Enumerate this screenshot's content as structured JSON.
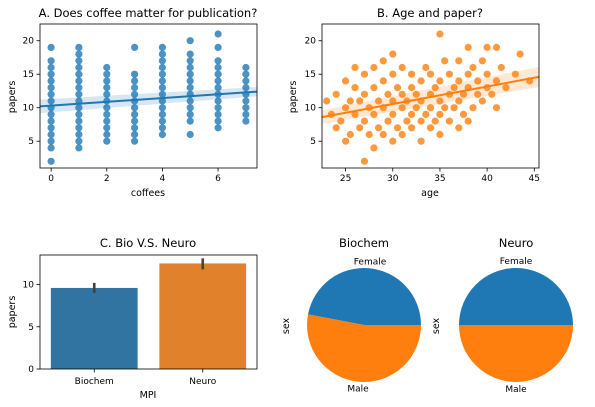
{
  "chart_data": [
    {
      "type": "scatter",
      "title": "A. Does coffee matter for publication?",
      "xlabel": "coffees",
      "ylabel": "papers",
      "xlim": [
        -0.4,
        7.4
      ],
      "ylim": [
        1,
        22.5
      ],
      "xticks": [
        0,
        2,
        4,
        6
      ],
      "yticks": [
        5,
        10,
        15,
        20
      ],
      "color": "#1f77b4",
      "regression": {
        "x": [
          -0.4,
          7.4
        ],
        "y": [
          10.2,
          12.4
        ],
        "ci": [
          1.0,
          0.7
        ]
      },
      "points": [
        [
          0,
          2
        ],
        [
          0,
          4
        ],
        [
          0,
          5
        ],
        [
          0,
          6
        ],
        [
          0,
          7
        ],
        [
          0,
          8
        ],
        [
          0,
          9
        ],
        [
          0,
          10
        ],
        [
          0,
          11
        ],
        [
          0,
          12
        ],
        [
          0,
          13
        ],
        [
          0,
          14
        ],
        [
          0,
          15
        ],
        [
          0,
          16
        ],
        [
          0,
          17
        ],
        [
          0,
          19
        ],
        [
          1,
          4
        ],
        [
          1,
          5
        ],
        [
          1,
          6
        ],
        [
          1,
          7
        ],
        [
          1,
          8
        ],
        [
          1,
          9
        ],
        [
          1,
          10
        ],
        [
          1,
          11
        ],
        [
          1,
          12
        ],
        [
          1,
          13
        ],
        [
          1,
          14
        ],
        [
          1,
          15
        ],
        [
          1,
          16
        ],
        [
          1,
          17
        ],
        [
          1,
          18
        ],
        [
          1,
          19
        ],
        [
          2,
          5
        ],
        [
          2,
          6
        ],
        [
          2,
          7
        ],
        [
          2,
          8
        ],
        [
          2,
          9
        ],
        [
          2,
          10
        ],
        [
          2,
          11
        ],
        [
          2,
          12
        ],
        [
          2,
          13
        ],
        [
          2,
          14
        ],
        [
          2,
          15
        ],
        [
          2,
          16
        ],
        [
          3,
          5
        ],
        [
          3,
          6
        ],
        [
          3,
          7
        ],
        [
          3,
          8
        ],
        [
          3,
          9
        ],
        [
          3,
          10
        ],
        [
          3,
          11
        ],
        [
          3,
          12
        ],
        [
          3,
          13
        ],
        [
          3,
          14
        ],
        [
          3,
          15
        ],
        [
          3,
          19
        ],
        [
          4,
          6
        ],
        [
          4,
          7
        ],
        [
          4,
          8
        ],
        [
          4,
          9
        ],
        [
          4,
          10
        ],
        [
          4,
          11
        ],
        [
          4,
          12
        ],
        [
          4,
          13
        ],
        [
          4,
          14
        ],
        [
          4,
          15
        ],
        [
          4,
          16
        ],
        [
          4,
          17
        ],
        [
          4,
          18
        ],
        [
          4,
          19
        ],
        [
          5,
          6
        ],
        [
          5,
          8
        ],
        [
          5,
          9
        ],
        [
          5,
          10
        ],
        [
          5,
          11
        ],
        [
          5,
          12
        ],
        [
          5,
          13
        ],
        [
          5,
          14
        ],
        [
          5,
          15
        ],
        [
          5,
          16
        ],
        [
          5,
          17
        ],
        [
          5,
          18
        ],
        [
          5,
          20
        ],
        [
          6,
          7
        ],
        [
          6,
          8
        ],
        [
          6,
          9
        ],
        [
          6,
          10
        ],
        [
          6,
          11
        ],
        [
          6,
          12
        ],
        [
          6,
          13
        ],
        [
          6,
          14
        ],
        [
          6,
          15
        ],
        [
          6,
          16
        ],
        [
          6,
          17
        ],
        [
          6,
          19
        ],
        [
          6,
          21
        ],
        [
          7,
          8
        ],
        [
          7,
          9
        ],
        [
          7,
          10
        ],
        [
          7,
          11
        ],
        [
          7,
          12
        ],
        [
          7,
          13
        ],
        [
          7,
          14
        ],
        [
          7,
          15
        ],
        [
          7,
          16
        ]
      ]
    },
    {
      "type": "scatter",
      "title": "B. Age and paper?",
      "xlabel": "age",
      "ylabel": "papers",
      "xlim": [
        22.5,
        45.5
      ],
      "ylim": [
        1,
        22.5
      ],
      "xticks": [
        25,
        30,
        35,
        40,
        45
      ],
      "yticks": [
        5,
        10,
        15,
        20
      ],
      "color": "#ff7f0e",
      "regression": {
        "x": [
          22.5,
          45.5
        ],
        "y": [
          8.6,
          14.6
        ],
        "ci": [
          1.0,
          1.5
        ]
      },
      "points": [
        [
          23,
          11
        ],
        [
          23.5,
          9
        ],
        [
          24,
          7
        ],
        [
          24,
          12
        ],
        [
          24.5,
          8
        ],
        [
          25,
          5
        ],
        [
          25,
          10
        ],
        [
          25,
          14
        ],
        [
          25.5,
          11
        ],
        [
          25.5,
          6
        ],
        [
          26,
          9
        ],
        [
          26,
          13
        ],
        [
          26,
          16
        ],
        [
          26.5,
          7
        ],
        [
          26.5,
          11
        ],
        [
          27,
          2
        ],
        [
          27,
          8
        ],
        [
          27,
          12
        ],
        [
          27,
          15
        ],
        [
          27.5,
          6
        ],
        [
          27.5,
          10
        ],
        [
          28,
          4
        ],
        [
          28,
          9
        ],
        [
          28,
          13
        ],
        [
          28,
          16
        ],
        [
          28.5,
          7
        ],
        [
          28.5,
          11
        ],
        [
          29,
          6
        ],
        [
          29,
          10
        ],
        [
          29,
          14
        ],
        [
          29,
          17
        ],
        [
          29.5,
          8
        ],
        [
          29.5,
          12
        ],
        [
          30,
          5
        ],
        [
          30,
          9
        ],
        [
          30,
          11
        ],
        [
          30,
          15
        ],
        [
          30,
          18
        ],
        [
          30.5,
          7
        ],
        [
          30.5,
          13
        ],
        [
          31,
          6
        ],
        [
          31,
          10
        ],
        [
          31,
          12
        ],
        [
          31,
          16
        ],
        [
          31.5,
          8
        ],
        [
          31.5,
          11
        ],
        [
          32,
          7
        ],
        [
          32,
          9
        ],
        [
          32,
          13
        ],
        [
          32,
          15
        ],
        [
          32.5,
          10
        ],
        [
          32.5,
          12
        ],
        [
          33,
          5
        ],
        [
          33,
          8
        ],
        [
          33,
          11
        ],
        [
          33,
          14
        ],
        [
          33.5,
          9
        ],
        [
          33.5,
          16
        ],
        [
          34,
          7
        ],
        [
          34,
          10
        ],
        [
          34,
          12
        ],
        [
          34,
          15
        ],
        [
          34.5,
          8
        ],
        [
          34.5,
          13
        ],
        [
          35,
          6
        ],
        [
          35,
          9
        ],
        [
          35,
          11
        ],
        [
          35,
          14
        ],
        [
          35,
          21
        ],
        [
          35.5,
          10
        ],
        [
          35.5,
          17
        ],
        [
          36,
          8
        ],
        [
          36,
          12
        ],
        [
          36,
          15
        ],
        [
          36.5,
          10
        ],
        [
          36.5,
          13
        ],
        [
          37,
          7
        ],
        [
          37,
          11
        ],
        [
          37,
          14
        ],
        [
          37,
          17
        ],
        [
          37.5,
          9
        ],
        [
          37.5,
          12
        ],
        [
          38,
          8
        ],
        [
          38,
          13
        ],
        [
          38,
          15
        ],
        [
          38,
          19
        ],
        [
          38.5,
          10
        ],
        [
          38.5,
          16
        ],
        [
          39,
          12
        ],
        [
          39,
          14
        ],
        [
          39.5,
          11
        ],
        [
          39.5,
          17
        ],
        [
          40,
          13
        ],
        [
          40,
          15
        ],
        [
          40,
          19
        ],
        [
          40.5,
          12
        ],
        [
          41,
          10
        ],
        [
          41,
          14
        ],
        [
          41,
          19
        ],
        [
          41.5,
          16
        ],
        [
          42,
          13
        ],
        [
          43,
          15
        ],
        [
          43.5,
          18
        ],
        [
          44.5,
          14
        ]
      ]
    },
    {
      "type": "bar",
      "title": "C. Bio V.S. Neuro",
      "xlabel": "MPI",
      "ylabel": "papers",
      "categories": [
        "Biochem",
        "Neuro"
      ],
      "values": [
        9.6,
        12.5
      ],
      "errors": [
        [
          9.0,
          10.2
        ],
        [
          11.8,
          13.1
        ]
      ],
      "ylim": [
        0,
        13.5
      ],
      "yticks": [
        0,
        5,
        10
      ],
      "colors": [
        "#3274a1",
        "#e1812c"
      ]
    },
    {
      "type": "pie",
      "title": "Biochem",
      "ylabel": "sex",
      "labels": [
        "Female",
        "Male"
      ],
      "values": [
        0.47,
        0.53
      ],
      "colors": [
        "#1f77b4",
        "#ff7f0e"
      ]
    },
    {
      "type": "pie",
      "title": "Neuro",
      "ylabel": "sex",
      "labels": [
        "Female",
        "Male"
      ],
      "values": [
        0.5,
        0.5
      ],
      "colors": [
        "#1f77b4",
        "#ff7f0e"
      ]
    }
  ]
}
